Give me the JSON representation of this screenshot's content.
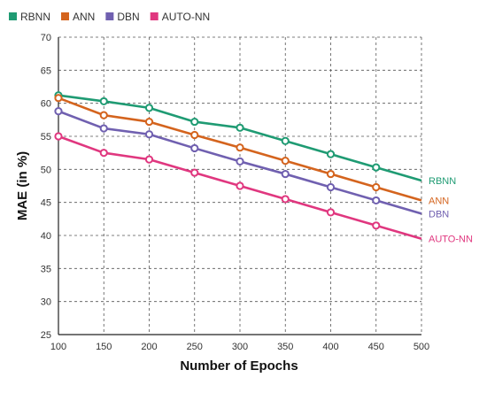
{
  "chart_data": {
    "type": "line",
    "xlabel": "Number of Epochs",
    "ylabel": "MAE (in %)",
    "x": [
      100,
      150,
      200,
      250,
      300,
      350,
      400,
      450,
      500
    ],
    "xlim": [
      100,
      500
    ],
    "ylim": [
      25,
      70
    ],
    "yticks": [
      25,
      30,
      35,
      40,
      45,
      50,
      55,
      60,
      65,
      70
    ],
    "grid": true,
    "legend_position": "top-left",
    "series": [
      {
        "name": "RBNN",
        "color": "#1f9b73",
        "end_label": "RBNN",
        "values": [
          61.2,
          60.3,
          59.3,
          57.2,
          56.3,
          54.3,
          52.3,
          50.3,
          48.3
        ]
      },
      {
        "name": "ANN",
        "color": "#d4641e",
        "end_label": "ANN",
        "values": [
          60.8,
          58.2,
          57.2,
          55.2,
          53.3,
          51.3,
          49.3,
          47.3,
          45.3
        ]
      },
      {
        "name": "DBN",
        "color": "#7060b0",
        "end_label": "DBN",
        "values": [
          58.8,
          56.2,
          55.3,
          53.2,
          51.2,
          49.3,
          47.3,
          45.3,
          43.3
        ]
      },
      {
        "name": "AUTO-NN",
        "color": "#e0377f",
        "end_label": "AUTO-NN",
        "values": [
          55.0,
          52.5,
          51.5,
          49.5,
          47.5,
          45.5,
          43.5,
          41.5,
          39.5
        ]
      }
    ]
  }
}
